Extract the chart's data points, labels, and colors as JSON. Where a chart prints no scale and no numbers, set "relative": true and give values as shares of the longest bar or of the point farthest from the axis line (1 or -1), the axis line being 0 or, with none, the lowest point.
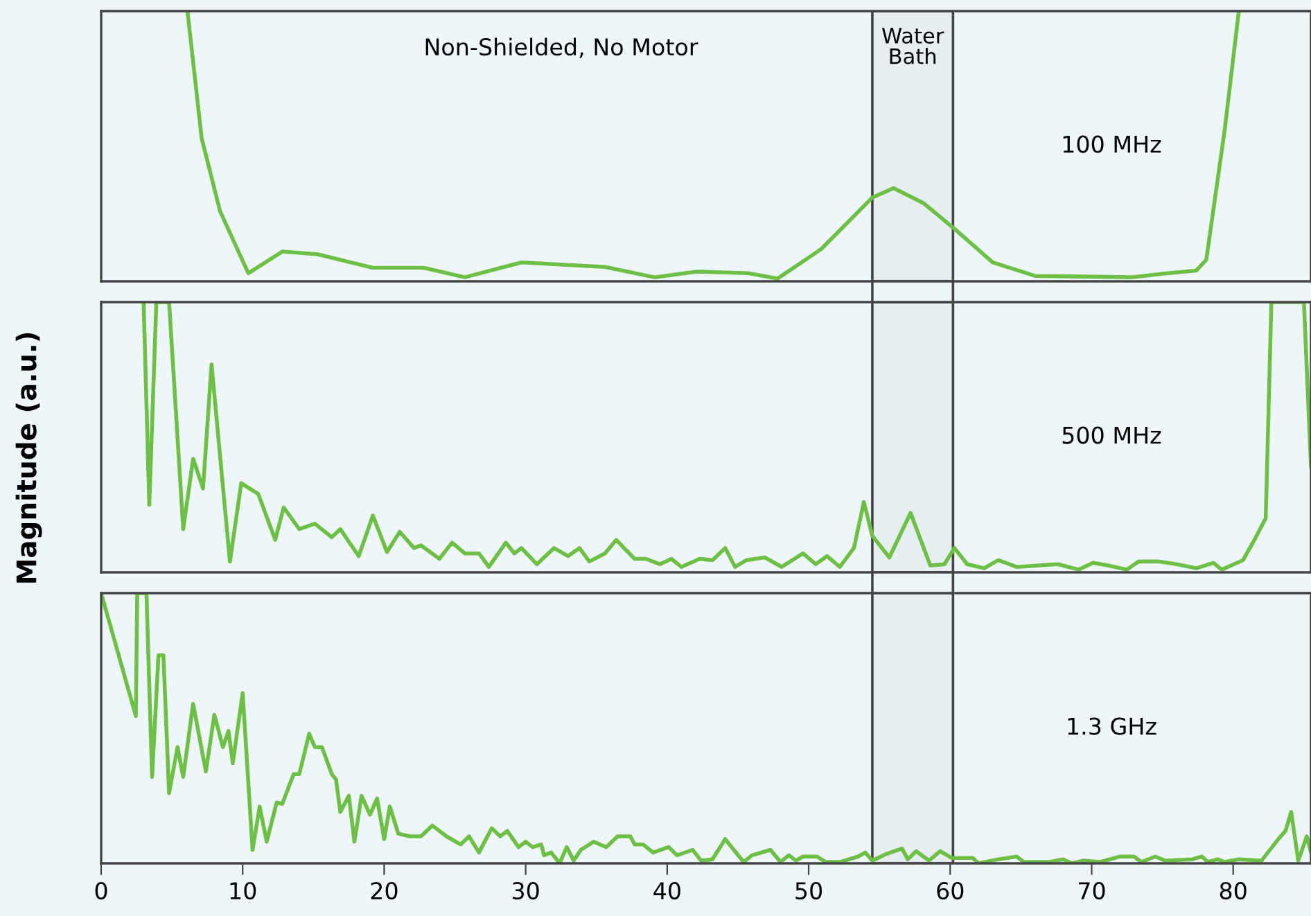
{
  "chart_data": [
    {
      "type": "line",
      "relative": true,
      "xlim": [
        0,
        85.5
      ],
      "tick_labels": false,
      "grid": false,
      "legend": false,
      "annotations": [
        "Non-Shielded, No Motor",
        "100 MHz"
      ],
      "bands": [
        {
          "axis": "x",
          "from": 54.5,
          "to": 60.2,
          "label": "Water Bath",
          "color": "#444444"
        }
      ],
      "series": [
        {
          "color": "#6dbf45",
          "x": [
            6.1,
            7.1,
            8.4,
            10.4,
            12.8,
            15.3,
            19.2,
            22.8,
            25.7,
            29.7,
            35.6,
            39.1,
            42.1,
            45.7,
            47.8,
            50.9,
            54.5,
            56.0,
            58.1,
            60.4,
            63.0,
            66.0,
            72.8,
            75.4,
            77.4,
            78.1,
            79.4,
            80.4
          ],
          "values": [
            1,
            0.53,
            0.26,
            0.03,
            0.11,
            0.1,
            0.05,
            0.05,
            0.015,
            0.07,
            0.053,
            0.015,
            0.036,
            0.03,
            0.01,
            0.12,
            0.31,
            0.345,
            0.29,
            0.19,
            0.07,
            0.02,
            0.015,
            0.03,
            0.04,
            0.08,
            0.56,
            1
          ]
        }
      ]
    },
    {
      "type": "line",
      "relative": true,
      "xlim": [
        0,
        85.5
      ],
      "tick_labels": false,
      "grid": false,
      "legend": false,
      "ylabel": "Magnitude (a.u.)",
      "annotations": [
        "500 MHz"
      ],
      "bands": [
        {
          "axis": "x",
          "from": 54.5,
          "to": 60.2,
          "color": "#444444"
        }
      ],
      "series": [
        {
          "color": "#6dbf45",
          "x": [
            3.0,
            3.4,
            3.9,
            4.8,
            5.8,
            6.5,
            7.2,
            7.8,
            9.1,
            9.9,
            11.1,
            12.3,
            12.9,
            14.0,
            15.1,
            16.3,
            16.9,
            18.2,
            19.2,
            20.2,
            21.1,
            22.1,
            22.6,
            23.9,
            24.8,
            25.7,
            26.7,
            27.4,
            28.6,
            29.2,
            29.7,
            30.8,
            32.0,
            33.0,
            33.8,
            34.5,
            35.6,
            36.4,
            37.7,
            38.5,
            39.5,
            40.3,
            41.0,
            42.3,
            43.2,
            44.1,
            44.8,
            45.6,
            46.9,
            48.1,
            49.6,
            50.5,
            51.3,
            52.2,
            53.2,
            53.9,
            54.5,
            55.7,
            57.2,
            58.6,
            59.6,
            60.3,
            61.2,
            62.4,
            63.4,
            64.7,
            67.6,
            69.1,
            70.1,
            71.2,
            72.5,
            73.3,
            74.8,
            76.0,
            77.4,
            78.6,
            79.2,
            80.7,
            81.5,
            82.3,
            82.7,
            85.0,
            85.5
          ],
          "values": [
            1,
            0.25,
            1,
            1,
            0.16,
            0.42,
            0.31,
            0.77,
            0.04,
            0.33,
            0.29,
            0.12,
            0.24,
            0.16,
            0.18,
            0.13,
            0.16,
            0.06,
            0.21,
            0.075,
            0.15,
            0.09,
            0.1,
            0.05,
            0.11,
            0.07,
            0.07,
            0.02,
            0.11,
            0.07,
            0.09,
            0.03,
            0.09,
            0.06,
            0.09,
            0.04,
            0.07,
            0.12,
            0.05,
            0.05,
            0.03,
            0.05,
            0.02,
            0.05,
            0.045,
            0.09,
            0.02,
            0.045,
            0.055,
            0.02,
            0.07,
            0.03,
            0.06,
            0.02,
            0.09,
            0.26,
            0.135,
            0.055,
            0.22,
            0.025,
            0.03,
            0.09,
            0.03,
            0.015,
            0.045,
            0.02,
            0.03,
            0.01,
            0.035,
            0.025,
            0.01,
            0.04,
            0.04,
            0.03,
            0.015,
            0.035,
            0.01,
            0.045,
            0.12,
            0.2,
            1,
            1,
            0.39
          ]
        }
      ]
    },
    {
      "type": "line",
      "relative": true,
      "xlim": [
        0,
        85.5
      ],
      "xticks": [
        0,
        10,
        20,
        30,
        40,
        50,
        60,
        70,
        80
      ],
      "tick_labels": "x",
      "grid": false,
      "legend": false,
      "annotations": [
        "1.3 GHz"
      ],
      "bands": [
        {
          "axis": "x",
          "from": 54.5,
          "to": 60.2,
          "color": "#444444"
        }
      ],
      "series": [
        {
          "color": "#6dbf45",
          "x": [
            0,
            2.45,
            2.55,
            3.2,
            3.6,
            4.05,
            4.4,
            4.8,
            5.4,
            5.8,
            6.5,
            7.4,
            8.0,
            8.6,
            9.0,
            9.3,
            10.0,
            10.7,
            11.2,
            11.7,
            12.4,
            12.8,
            13.6,
            14.0,
            14.7,
            15.1,
            15.6,
            16.3,
            16.6,
            16.9,
            17.5,
            17.9,
            18.4,
            19.0,
            19.5,
            20.0,
            20.4,
            21.0,
            21.8,
            22.6,
            23.4,
            24.4,
            25.4,
            26.0,
            26.7,
            27.6,
            28.2,
            28.7,
            29.5,
            30.0,
            30.5,
            31.1,
            31.3,
            31.8,
            32.4,
            32.9,
            33.4,
            33.9,
            34.8,
            35.7,
            36.5,
            37.4,
            37.7,
            38.3,
            39.0,
            40.1,
            40.7,
            41.8,
            42.4,
            43.2,
            44.1,
            45.4,
            46.0,
            47.3,
            48.0,
            48.6,
            49.1,
            49.6,
            50.6,
            51.2,
            52.2,
            53.5,
            54.0,
            54.5,
            55.5,
            56.6,
            57.0,
            57.6,
            58.5,
            59.3,
            60.1,
            61.6,
            62.0,
            63.4,
            64.7,
            65.2,
            67.0,
            68.0,
            68.6,
            69.4,
            70.6,
            72.0,
            73.0,
            73.5,
            74.5,
            75.2,
            77.1,
            77.8,
            78.2,
            78.9,
            79.4,
            80.4,
            82.0,
            83.2,
            83.7,
            84.1,
            84.6,
            85.2,
            85.5
          ],
          "values": [
            1,
            0.545,
            1,
            1,
            0.32,
            0.77,
            0.77,
            0.26,
            0.43,
            0.32,
            0.59,
            0.34,
            0.55,
            0.43,
            0.49,
            0.37,
            0.63,
            0.05,
            0.21,
            0.08,
            0.225,
            0.22,
            0.33,
            0.33,
            0.48,
            0.43,
            0.43,
            0.33,
            0.31,
            0.19,
            0.25,
            0.08,
            0.25,
            0.18,
            0.24,
            0.09,
            0.21,
            0.11,
            0.1,
            0.1,
            0.14,
            0.1,
            0.07,
            0.1,
            0.04,
            0.13,
            0.1,
            0.12,
            0.06,
            0.08,
            0.06,
            0.07,
            0.03,
            0.04,
            0.0,
            0.06,
            0.01,
            0.05,
            0.08,
            0.06,
            0.1,
            0.1,
            0.07,
            0.07,
            0.04,
            0.06,
            0.03,
            0.05,
            0.01,
            0.015,
            0.09,
            0.005,
            0.03,
            0.05,
            0.005,
            0.03,
            0.01,
            0.025,
            0.025,
            0.005,
            0.005,
            0.025,
            0.04,
            0.01,
            0.035,
            0.055,
            0.015,
            0.045,
            0.01,
            0.045,
            0.02,
            0.02,
            0.0,
            0.015,
            0.025,
            0.005,
            0.005,
            0.015,
            0.0,
            0.01,
            0.005,
            0.025,
            0.025,
            0.005,
            0.025,
            0.01,
            0.015,
            0.025,
            0.005,
            0.015,
            0.005,
            0.015,
            0.01,
            0.09,
            0.12,
            0.19,
            0.01,
            0.1,
            0.04
          ]
        }
      ]
    }
  ]
}
